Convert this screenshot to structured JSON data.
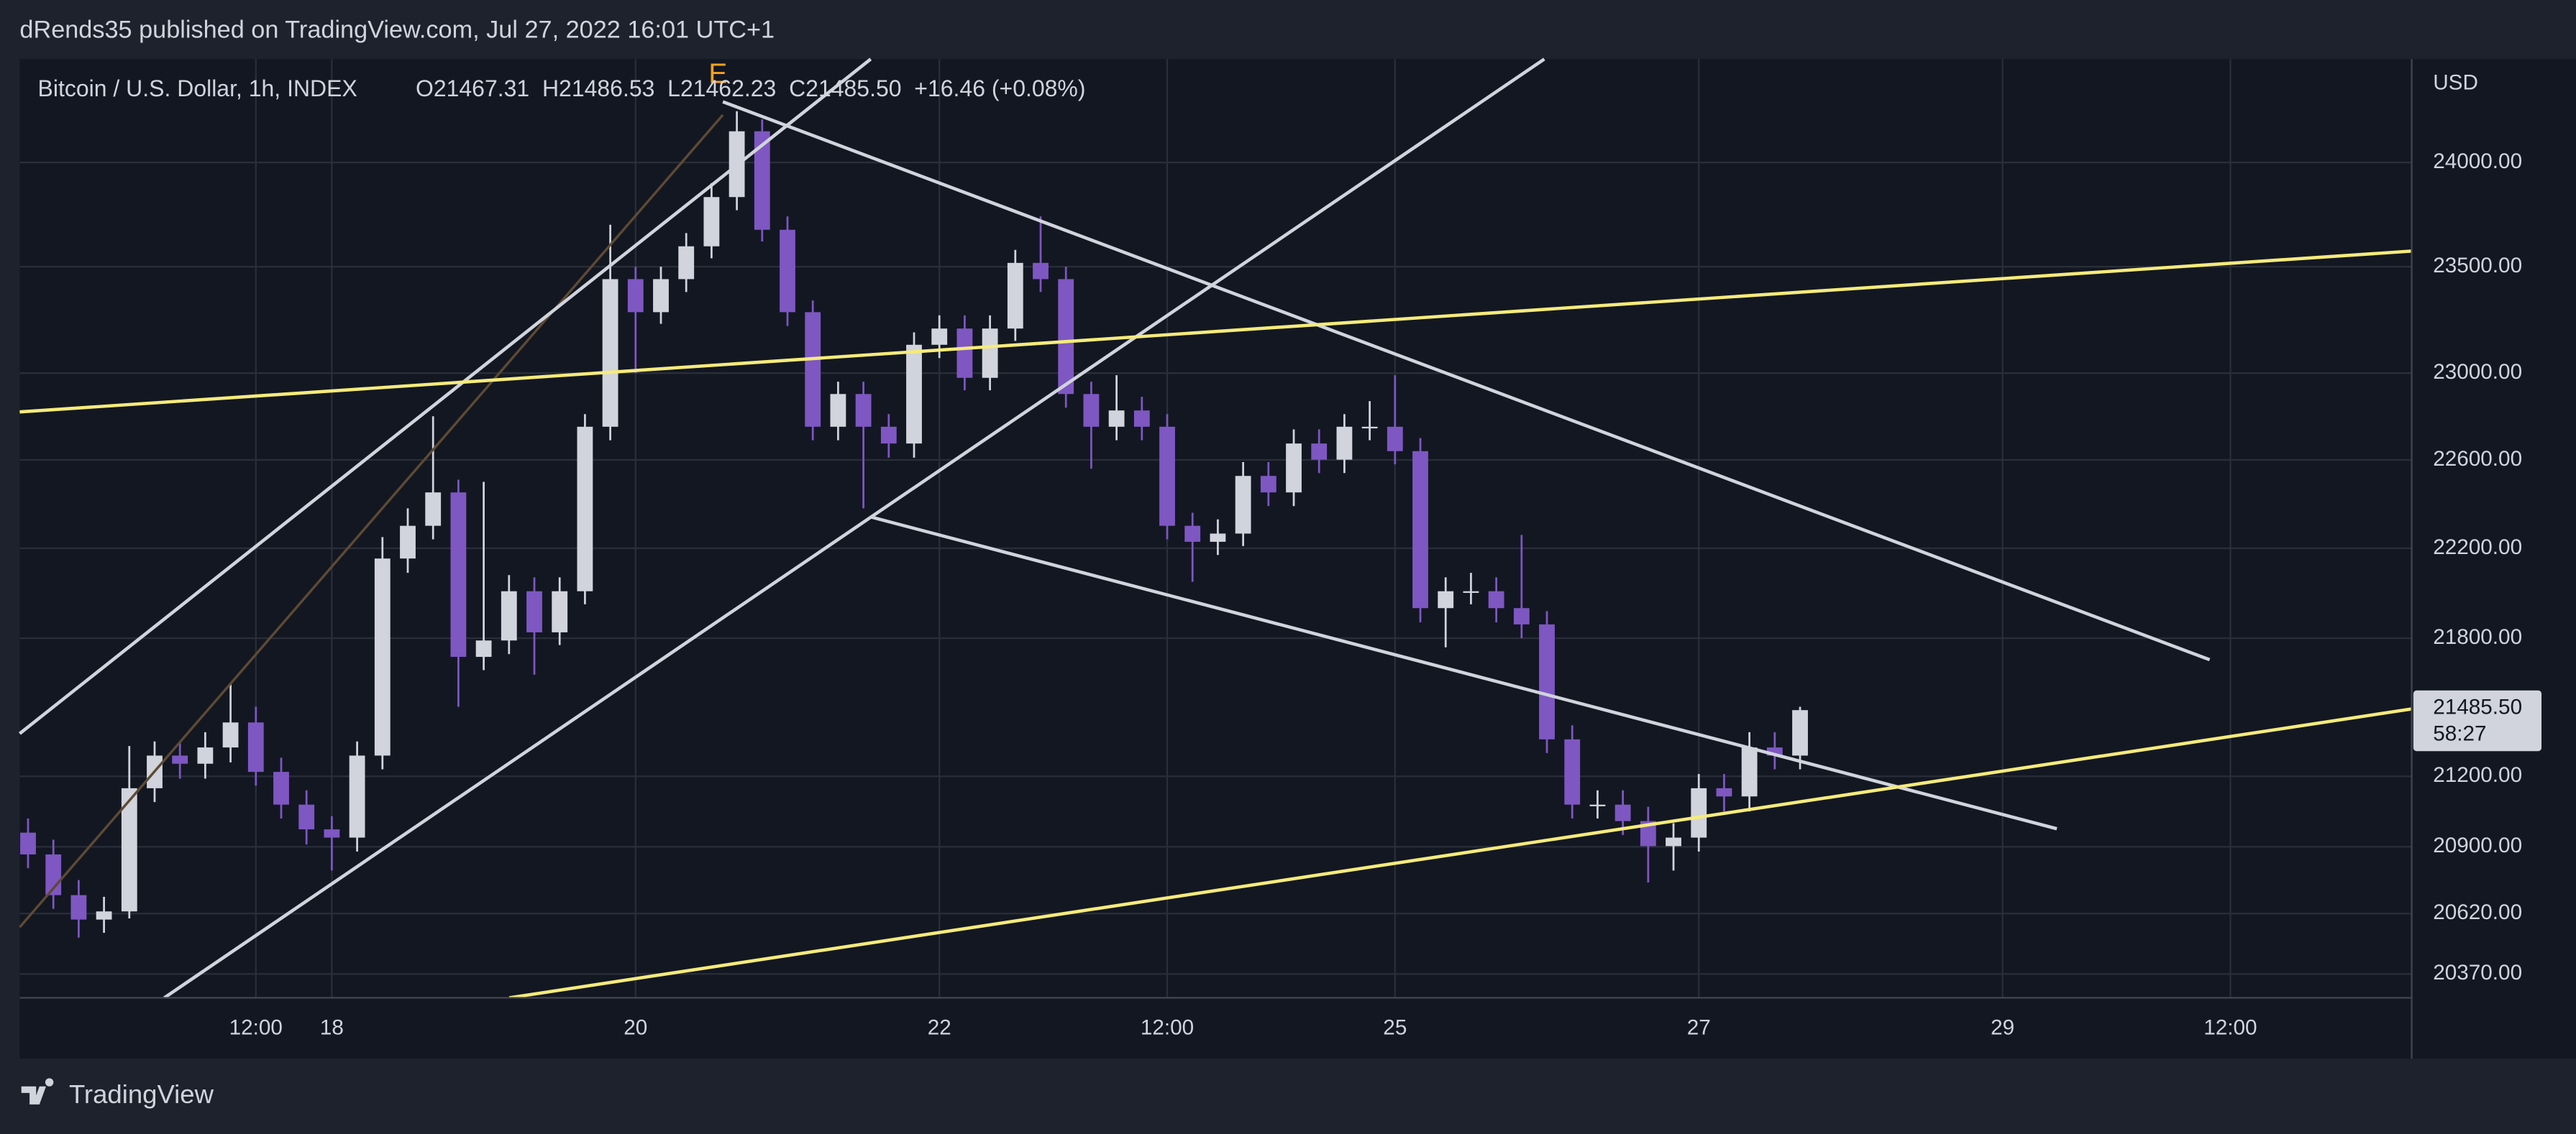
{
  "header": {
    "text": "dRends35 published on TradingView.com, Jul 27, 2022 16:01 UTC+1"
  },
  "chart_data": {
    "type": "candlestick",
    "title": "Bitcoin / U.S. Dollar, 1h, INDEX",
    "ohlc_legend": "O21467.31  H21486.53  L21462.23  C21485.50  +16.46 (+0.08%)",
    "marker": "E",
    "y_axis_label": "USD",
    "last_price_label": "21485.50",
    "countdown": "58:27",
    "up_color": "#d1d4dc",
    "down_color": "#7e57c2",
    "log_scale": true,
    "grid": true,
    "xlim": [
      "2022-07-15T22:41",
      "2022-07-31T16:39"
    ],
    "xticks": [
      {
        "value": "2022-07-17T12:00",
        "label": "12:00"
      },
      {
        "value": "2022-07-18T00:00",
        "label": "18"
      },
      {
        "value": "2022-07-20T00:00",
        "label": "20"
      },
      {
        "value": "2022-07-22T00:00",
        "label": "22"
      },
      {
        "value": "2022-07-23T12:00",
        "label": "12:00"
      },
      {
        "value": "2022-07-25T00:00",
        "label": "25"
      },
      {
        "value": "2022-07-27T00:00",
        "label": "27"
      },
      {
        "value": "2022-07-29T00:00",
        "label": "29"
      },
      {
        "value": "2022-07-30T12:00",
        "label": "12:00"
      }
    ],
    "ylim": [
      20272,
      24507
    ],
    "yticks": [
      {
        "value": 24000,
        "label": "24000.00"
      },
      {
        "value": 23500,
        "label": "23500.00"
      },
      {
        "value": 23000,
        "label": "23000.00"
      },
      {
        "value": 22600,
        "label": "22600.00"
      },
      {
        "value": 22200,
        "label": "22200.00"
      },
      {
        "value": 21800,
        "label": "21800.00"
      },
      {
        "value": 21200,
        "label": "21200.00"
      },
      {
        "value": 20900,
        "label": "20900.00"
      },
      {
        "value": 20620,
        "label": "20620.00"
      },
      {
        "value": 20370,
        "label": "20370.00"
      }
    ],
    "x": [
      "2022-07-16T00:00",
      "2022-07-16T04:00",
      "2022-07-16T08:00",
      "2022-07-16T12:00",
      "2022-07-16T16:00",
      "2022-07-16T20:00",
      "2022-07-17T00:00",
      "2022-07-17T04:00",
      "2022-07-17T08:00",
      "2022-07-17T12:00",
      "2022-07-17T16:00",
      "2022-07-17T20:00",
      "2022-07-18T00:00",
      "2022-07-18T04:00",
      "2022-07-18T08:00",
      "2022-07-18T12:00",
      "2022-07-18T16:00",
      "2022-07-18T20:00",
      "2022-07-19T00:00",
      "2022-07-19T04:00",
      "2022-07-19T08:00",
      "2022-07-19T12:00",
      "2022-07-19T16:00",
      "2022-07-19T20:00",
      "2022-07-20T00:00",
      "2022-07-20T04:00",
      "2022-07-20T08:00",
      "2022-07-20T12:00",
      "2022-07-20T16:00",
      "2022-07-20T20:00",
      "2022-07-21T00:00",
      "2022-07-21T04:00",
      "2022-07-21T08:00",
      "2022-07-21T12:00",
      "2022-07-21T16:00",
      "2022-07-21T20:00",
      "2022-07-22T00:00",
      "2022-07-22T04:00",
      "2022-07-22T08:00",
      "2022-07-22T12:00",
      "2022-07-22T16:00",
      "2022-07-22T20:00",
      "2022-07-23T00:00",
      "2022-07-23T04:00",
      "2022-07-23T08:00",
      "2022-07-23T12:00",
      "2022-07-23T16:00",
      "2022-07-23T20:00",
      "2022-07-24T00:00",
      "2022-07-24T04:00",
      "2022-07-24T08:00",
      "2022-07-24T12:00",
      "2022-07-24T16:00",
      "2022-07-24T20:00",
      "2022-07-25T00:00",
      "2022-07-25T04:00",
      "2022-07-25T08:00",
      "2022-07-25T12:00",
      "2022-07-25T16:00",
      "2022-07-25T20:00",
      "2022-07-26T00:00",
      "2022-07-26T04:00",
      "2022-07-26T08:00",
      "2022-07-26T12:00",
      "2022-07-26T16:00",
      "2022-07-26T20:00",
      "2022-07-27T00:00",
      "2022-07-27T04:00",
      "2022-07-27T08:00",
      "2022-07-27T12:00",
      "2022-07-27T16:00"
    ],
    "open": [
      20960,
      20868,
      20697,
      20595,
      20629,
      21149,
      21289,
      21254,
      21324,
      21432,
      21219,
      21079,
      20974,
      20939,
      21289,
      22154,
      22301,
      22452,
      21718,
      21790,
      22008,
      21826,
      22008,
      22752,
      23441,
      23285,
      23441,
      23597,
      23833,
      24152,
      23676,
      23285,
      22752,
      22903,
      22752,
      22675,
      23132,
      23208,
      22978,
      23208,
      23518,
      23441,
      22903,
      22752,
      22827,
      22752,
      22301,
      22229,
      22266,
      22527,
      22452,
      22675,
      22601,
      22752,
      22752,
      22640,
      21933,
      22008,
      22008,
      21933,
      21861,
      21359,
      21079,
      21079,
      21009,
      20903,
      20939,
      21149,
      21114,
      21324,
      21289
    ],
    "high": [
      21020,
      20930,
      20760,
      20690,
      21330,
      21350,
      21350,
      21390,
      21600,
      21500,
      21280,
      21140,
      21030,
      21350,
      22250,
      22380,
      22800,
      22510,
      22500,
      22080,
      22070,
      22070,
      22810,
      23700,
      23500,
      23500,
      23660,
      23900,
      24250,
      24210,
      23740,
      23340,
      22960,
      22960,
      22810,
      23190,
      23270,
      23270,
      23270,
      23580,
      23740,
      23500,
      22960,
      22990,
      22890,
      22810,
      22360,
      22330,
      22590,
      22590,
      22740,
      22740,
      22810,
      22870,
      22990,
      22700,
      22070,
      22090,
      22070,
      22260,
      21920,
      21420,
      21140,
      21140,
      21070,
      21000,
      21210,
      21210,
      21390,
      21390,
      21500
    ],
    "low": [
      20810,
      20640,
      20520,
      20540,
      20600,
      21090,
      21190,
      21190,
      21260,
      21160,
      21020,
      20910,
      20800,
      20880,
      21230,
      22090,
      22240,
      21500,
      21660,
      21730,
      21640,
      21770,
      21950,
      22690,
      23000,
      23230,
      23380,
      23540,
      23770,
      23620,
      23220,
      22690,
      22690,
      22380,
      22610,
      22610,
      23070,
      22920,
      22920,
      23150,
      23380,
      22840,
      22560,
      22690,
      22690,
      22240,
      22050,
      22170,
      22210,
      22390,
      22390,
      22540,
      22540,
      22690,
      22580,
      21870,
      21760,
      21950,
      21870,
      21800,
      21300,
      21020,
      21020,
      20950,
      20750,
      20800,
      20880,
      21050,
      21050,
      21230,
      21230
    ],
    "close": [
      20868,
      20697,
      20595,
      20629,
      21149,
      21289,
      21254,
      21324,
      21432,
      21219,
      21079,
      20974,
      20939,
      21289,
      22154,
      22301,
      22452,
      21718,
      21790,
      22008,
      21826,
      22008,
      22752,
      23441,
      23285,
      23441,
      23597,
      23833,
      24152,
      23676,
      23285,
      22752,
      22903,
      22752,
      22675,
      23132,
      23208,
      22978,
      23208,
      23518,
      23441,
      22903,
      22752,
      22827,
      22752,
      22301,
      22229,
      22266,
      22527,
      22452,
      22675,
      22601,
      22752,
      22752,
      22640,
      21933,
      22008,
      22008,
      21933,
      21861,
      21359,
      21079,
      21079,
      21009,
      20903,
      20939,
      21149,
      21114,
      21324,
      21289,
      21485.5
    ]
  },
  "footer": {
    "brand": "TradingView"
  }
}
